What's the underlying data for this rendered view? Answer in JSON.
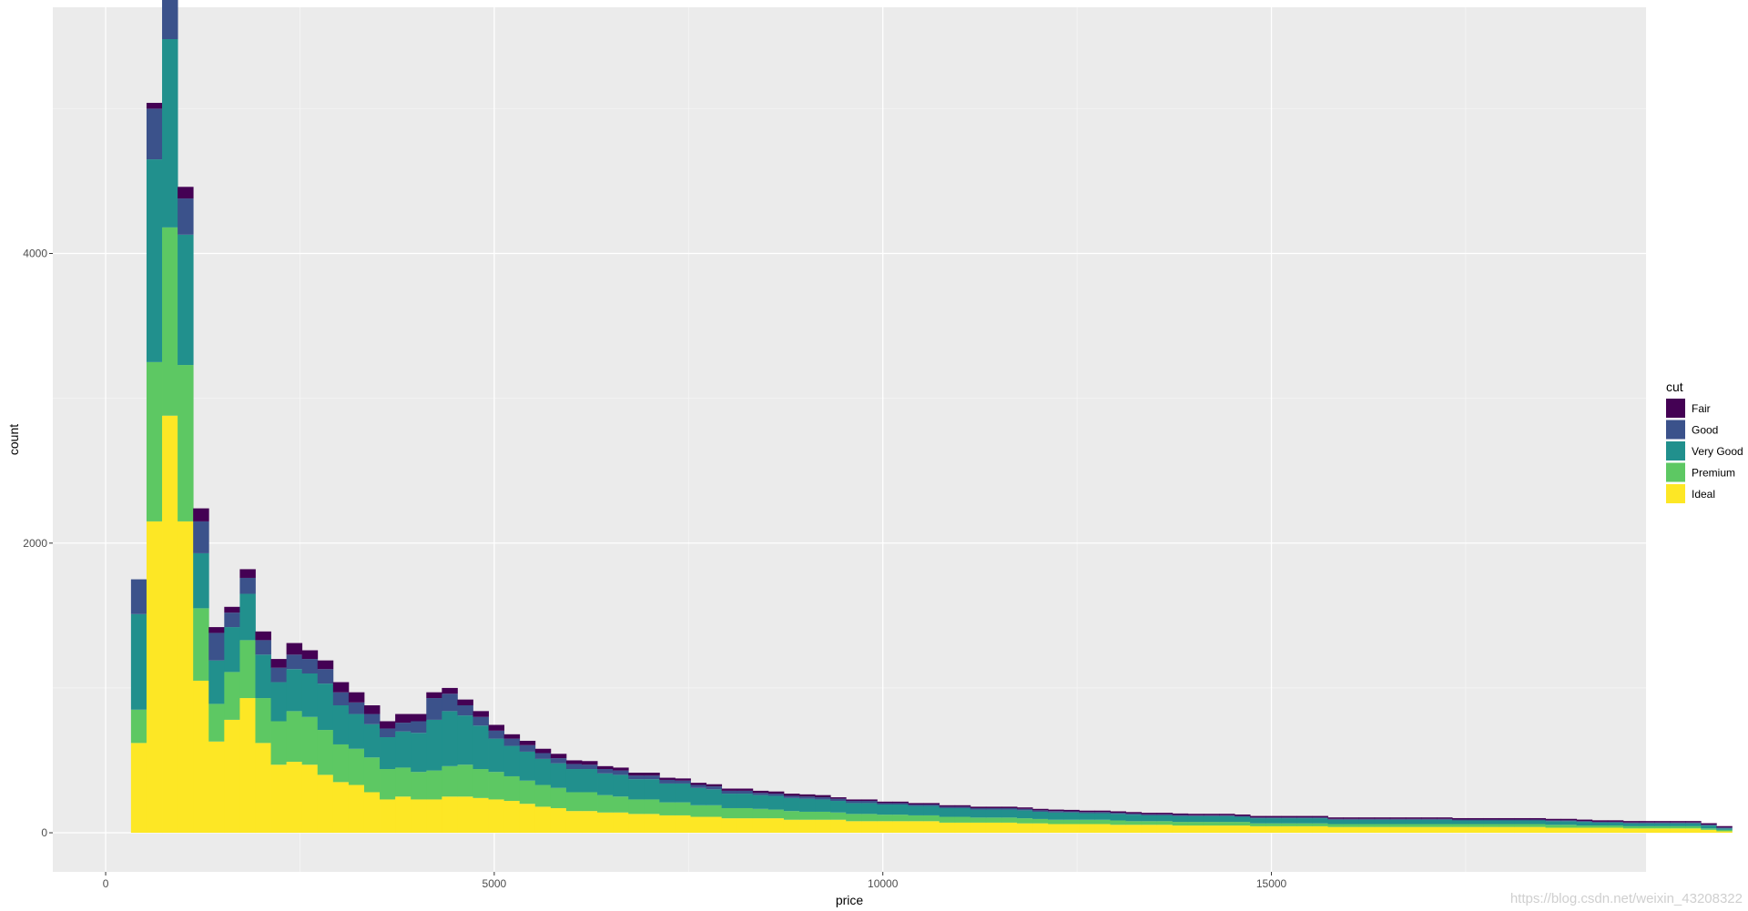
{
  "chart_data": {
    "type": "bar",
    "stacked": true,
    "xlabel": "price",
    "ylabel": "count",
    "xlim": [
      -680,
      19820
    ],
    "ylim": [
      -270,
      5700
    ],
    "x_ticks": [
      0,
      5000,
      10000,
      15000
    ],
    "x_tick_labels": [
      "0",
      "5000",
      "10000",
      "15000"
    ],
    "y_ticks": [
      0,
      2000,
      4000
    ],
    "y_tick_labels": [
      "0",
      "2000",
      "4000"
    ],
    "grid": true,
    "background": "#EBEBEB",
    "bin_width": 200,
    "legend": {
      "title": "cut",
      "position": "right"
    },
    "series": [
      {
        "name": "Ideal",
        "color": "#FDE725",
        "values": [
          620,
          2150,
          2880,
          2150,
          1050,
          630,
          780,
          930,
          620,
          470,
          490,
          470,
          400,
          350,
          330,
          280,
          230,
          250,
          230,
          230,
          250,
          250,
          240,
          230,
          220,
          200,
          180,
          170,
          150,
          150,
          140,
          140,
          130,
          130,
          120,
          120,
          110,
          110,
          100,
          100,
          100,
          100,
          90,
          90,
          90,
          90,
          80,
          80,
          80,
          80,
          80,
          80,
          70,
          70,
          70,
          70,
          70,
          65,
          65,
          60,
          60,
          60,
          60,
          55,
          55,
          55,
          55,
          50,
          50,
          50,
          50,
          50,
          45,
          45,
          45,
          45,
          45,
          40,
          40,
          40,
          40,
          40,
          40,
          40,
          40,
          40,
          40,
          40,
          40,
          40,
          40,
          35,
          35,
          35,
          35,
          35,
          30,
          30,
          30,
          30,
          30,
          20,
          10
        ]
      },
      {
        "name": "Premium",
        "color": "#5DC863",
        "values": [
          230,
          1100,
          1300,
          1080,
          500,
          260,
          330,
          400,
          310,
          300,
          350,
          330,
          310,
          260,
          250,
          240,
          210,
          200,
          190,
          200,
          210,
          220,
          200,
          190,
          170,
          160,
          150,
          140,
          130,
          130,
          120,
          110,
          100,
          100,
          90,
          90,
          80,
          80,
          70,
          70,
          65,
          60,
          60,
          55,
          55,
          50,
          50,
          50,
          45,
          45,
          40,
          40,
          40,
          40,
          35,
          35,
          35,
          35,
          30,
          30,
          30,
          30,
          30,
          30,
          25,
          25,
          25,
          25,
          25,
          25,
          25,
          25,
          20,
          20,
          20,
          20,
          20,
          20,
          20,
          20,
          20,
          20,
          20,
          20,
          20,
          20,
          20,
          20,
          20,
          20,
          20,
          20,
          20,
          15,
          15,
          15,
          15,
          15,
          15,
          15,
          15,
          10,
          10
        ]
      },
      {
        "name": "Very Good",
        "color": "#21908D",
        "values": [
          660,
          1400,
          1300,
          900,
          380,
          300,
          310,
          320,
          300,
          270,
          290,
          300,
          320,
          270,
          240,
          230,
          220,
          250,
          270,
          350,
          380,
          340,
          300,
          230,
          210,
          200,
          180,
          170,
          160,
          160,
          150,
          150,
          140,
          140,
          130,
          130,
          120,
          110,
          100,
          100,
          95,
          95,
          90,
          90,
          85,
          80,
          75,
          75,
          70,
          70,
          65,
          65,
          60,
          60,
          55,
          55,
          55,
          55,
          50,
          50,
          50,
          45,
          45,
          45,
          45,
          40,
          40,
          40,
          40,
          40,
          40,
          35,
          35,
          35,
          35,
          35,
          35,
          30,
          30,
          30,
          30,
          30,
          30,
          30,
          30,
          25,
          25,
          25,
          25,
          25,
          25,
          25,
          25,
          25,
          20,
          20,
          20,
          20,
          20,
          20,
          20,
          20,
          10
        ]
      },
      {
        "name": "Good",
        "color": "#3B528B",
        "values": [
          240,
          350,
          390,
          250,
          220,
          190,
          100,
          110,
          100,
          100,
          100,
          100,
          100,
          90,
          80,
          70,
          60,
          60,
          80,
          150,
          120,
          70,
          60,
          55,
          50,
          45,
          40,
          35,
          35,
          30,
          30,
          30,
          25,
          25,
          25,
          20,
          20,
          20,
          20,
          20,
          15,
          15,
          15,
          15,
          15,
          15,
          15,
          15,
          10,
          10,
          10,
          10,
          10,
          10,
          10,
          10,
          10,
          10,
          10,
          10,
          8,
          8,
          8,
          8,
          8,
          8,
          8,
          8,
          6,
          6,
          6,
          6,
          6,
          6,
          6,
          6,
          6,
          6,
          6,
          6,
          6,
          6,
          6,
          6,
          6,
          6,
          6,
          6,
          6,
          6,
          6,
          6,
          6,
          6,
          6,
          6,
          6,
          6,
          6,
          6,
          6,
          6,
          6
        ]
      },
      {
        "name": "Fair",
        "color": "#440154",
        "values": [
          0,
          40,
          40,
          80,
          90,
          40,
          40,
          60,
          60,
          60,
          80,
          60,
          60,
          70,
          70,
          60,
          50,
          60,
          50,
          40,
          40,
          40,
          40,
          40,
          30,
          30,
          30,
          30,
          25,
          25,
          20,
          20,
          20,
          20,
          15,
          15,
          15,
          15,
          15,
          15,
          15,
          15,
          15,
          15,
          15,
          10,
          10,
          10,
          10,
          10,
          10,
          10,
          10,
          10,
          10,
          10,
          10,
          10,
          10,
          10,
          10,
          10,
          10,
          10,
          10,
          10,
          10,
          10,
          10,
          10,
          10,
          10,
          10,
          10,
          10,
          10,
          10,
          10,
          10,
          10,
          10,
          10,
          10,
          10,
          10,
          10,
          10,
          10,
          10,
          10,
          10,
          10,
          10,
          10,
          10,
          10,
          10,
          10,
          10,
          10,
          10,
          10,
          10
        ]
      }
    ]
  },
  "watermark": "https://blog.csdn.net/weixin_43208322"
}
